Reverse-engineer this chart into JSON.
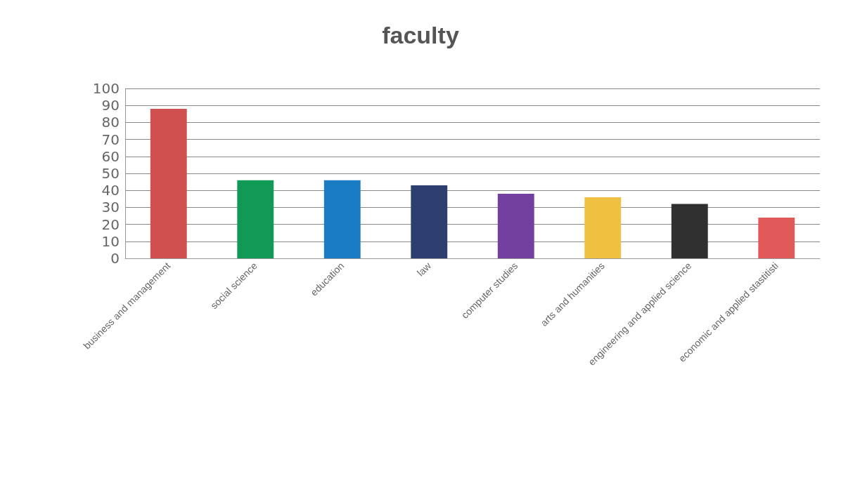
{
  "chart_data": {
    "type": "bar",
    "title": "faculty",
    "categories": [
      "business and management",
      "social science",
      "education",
      "law",
      "computer studies",
      "arts and humanities",
      "engineering and applied science",
      "economic and applied stastitisti"
    ],
    "values": [
      88,
      46,
      46,
      43,
      38,
      36,
      32,
      24
    ],
    "colors": [
      "#d05050",
      "#109a55",
      "#1a7cc2",
      "#2d3f6e",
      "#7440a0",
      "#f0c040",
      "#303030",
      "#e05a5a"
    ],
    "ylim": [
      0,
      100
    ],
    "yticks": [
      0,
      10,
      20,
      30,
      40,
      50,
      60,
      70,
      80,
      90,
      100
    ],
    "grid": "y"
  }
}
